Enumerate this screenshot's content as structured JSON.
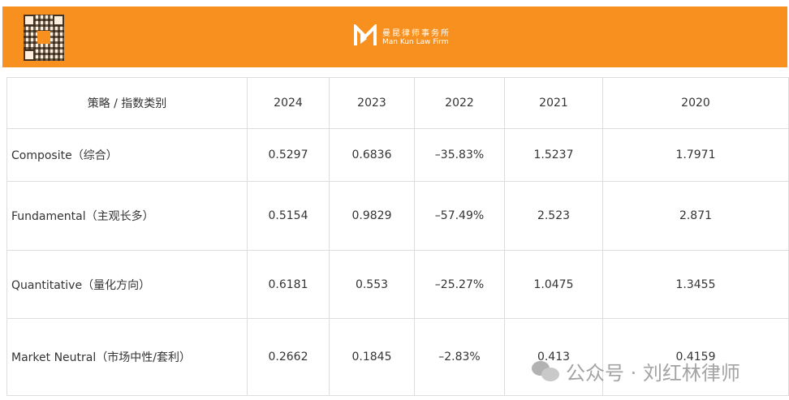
{
  "banner": {
    "logo_cn": "曼昆律师事务所",
    "logo_en": "Man Kun Law Firm",
    "brand_color": "#F7901E"
  },
  "table": {
    "headers": [
      "策略 / 指数类别",
      "2024",
      "2023",
      "2022",
      "2021",
      "2020"
    ],
    "rows": [
      [
        "Composite（综合）",
        "0.5297",
        "0.6836",
        "–35.83%",
        "1.5237",
        "1.7971"
      ],
      [
        "Fundamental（主观长多）",
        "0.5154",
        "0.9829",
        "–57.49%",
        "2.523",
        "2.871"
      ],
      [
        "Quantitative（量化方向）",
        "0.6181",
        "0.553",
        "–25.27%",
        "1.0475",
        "1.3455"
      ],
      [
        "Market Neutral（市场中性/套利）",
        "0.2662",
        "0.1845",
        "–2.83%",
        "0.413",
        "0.4159"
      ]
    ]
  },
  "watermark": {
    "text": "公众号 · 刘红林律师"
  }
}
